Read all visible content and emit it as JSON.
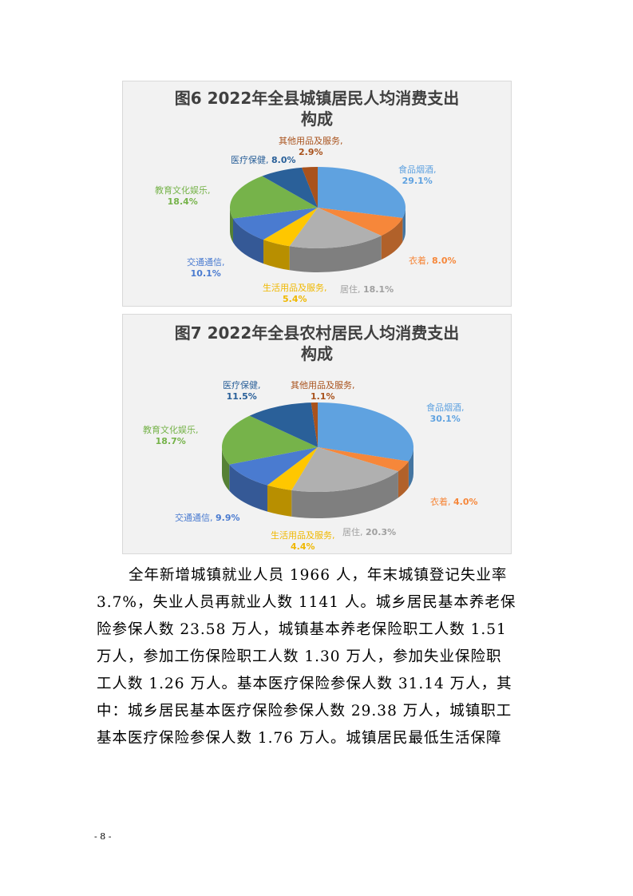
{
  "chart_data": [
    {
      "type": "pie",
      "title_line1": "图6  2022年全县城镇居民人均消费支出",
      "title_line2": "构成",
      "categories": [
        "食品烟酒",
        "衣着",
        "居住",
        "生活用品及服务",
        "交通通信",
        "教育文化娱乐",
        "医疗保健",
        "其他用品及服务"
      ],
      "values": [
        29.1,
        8.0,
        18.1,
        5.4,
        10.1,
        18.4,
        8.0,
        2.9
      ],
      "labels": [
        "29.1%",
        "8.0%",
        "18.1%",
        "5.4%",
        "10.1%",
        "18.4%",
        "8.0%",
        "2.9%"
      ],
      "colors": [
        "#5fa2e0",
        "#f6873a",
        "#b0b0b0",
        "#ffc700",
        "#4a7bd0",
        "#76b34a",
        "#2a6099",
        "#a9521c"
      ],
      "style": "3d"
    },
    {
      "type": "pie",
      "title_line1": "图7  2022年全县农村居民人均消费支出",
      "title_line2": "构成",
      "categories": [
        "食品烟酒",
        "衣着",
        "居住",
        "生活用品及服务",
        "交通通信",
        "教育文化娱乐",
        "医疗保健",
        "其他用品及服务"
      ],
      "values": [
        30.1,
        4.0,
        20.3,
        4.4,
        9.9,
        18.7,
        11.5,
        1.1
      ],
      "labels": [
        "30.1%",
        "4.0%",
        "20.3%",
        "4.4%",
        "9.9%",
        "18.7%",
        "11.5%",
        "1.1%"
      ],
      "colors": [
        "#5fa2e0",
        "#f6873a",
        "#b0b0b0",
        "#ffc700",
        "#4a7bd0",
        "#76b34a",
        "#2a6099",
        "#a9521c"
      ],
      "style": "3d"
    }
  ],
  "body": {
    "lines": [
      "全年新增城镇就业人员 1966 人，年末城镇登记失业率",
      "3.7%，失业人员再就业人数 1141 人。城乡居民基本养老保",
      "险参保人数 23.58 万人，城镇基本养老保险职工人数 1.51",
      "万人，参加工伤保险职工人数 1.30 万人，参加失业保险职",
      "工人数 1.26 万人。基本医疗保险参保人数 31.14 万人，其",
      "中：城乡居民基本医疗保险参保人数 29.38 万人，城镇职工",
      "基本医疗保险参保人数 1.76 万人。城镇居民最低生活保障"
    ]
  },
  "page_number": "- 8 -"
}
